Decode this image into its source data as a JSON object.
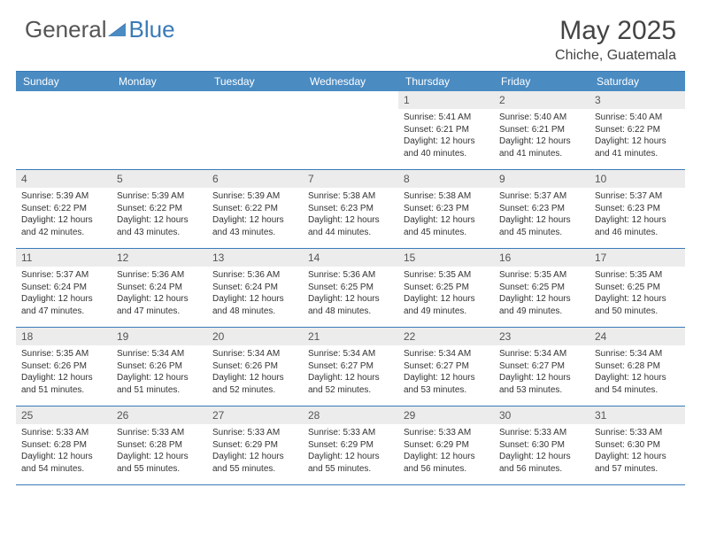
{
  "logo": {
    "text_general": "General",
    "text_blue": "Blue"
  },
  "title": "May 2025",
  "location": "Chiche, Guatemala",
  "colors": {
    "header_bg": "#4a8bc2",
    "border": "#3a7ab8",
    "daynum_bg": "#ececec",
    "text": "#333333"
  },
  "day_names": [
    "Sunday",
    "Monday",
    "Tuesday",
    "Wednesday",
    "Thursday",
    "Friday",
    "Saturday"
  ],
  "weeks": [
    [
      {
        "empty": true
      },
      {
        "empty": true
      },
      {
        "empty": true
      },
      {
        "empty": true
      },
      {
        "day": "1",
        "sunrise": "Sunrise: 5:41 AM",
        "sunset": "Sunset: 6:21 PM",
        "daylight": "Daylight: 12 hours and 40 minutes."
      },
      {
        "day": "2",
        "sunrise": "Sunrise: 5:40 AM",
        "sunset": "Sunset: 6:21 PM",
        "daylight": "Daylight: 12 hours and 41 minutes."
      },
      {
        "day": "3",
        "sunrise": "Sunrise: 5:40 AM",
        "sunset": "Sunset: 6:22 PM",
        "daylight": "Daylight: 12 hours and 41 minutes."
      }
    ],
    [
      {
        "day": "4",
        "sunrise": "Sunrise: 5:39 AM",
        "sunset": "Sunset: 6:22 PM",
        "daylight": "Daylight: 12 hours and 42 minutes."
      },
      {
        "day": "5",
        "sunrise": "Sunrise: 5:39 AM",
        "sunset": "Sunset: 6:22 PM",
        "daylight": "Daylight: 12 hours and 43 minutes."
      },
      {
        "day": "6",
        "sunrise": "Sunrise: 5:39 AM",
        "sunset": "Sunset: 6:22 PM",
        "daylight": "Daylight: 12 hours and 43 minutes."
      },
      {
        "day": "7",
        "sunrise": "Sunrise: 5:38 AM",
        "sunset": "Sunset: 6:23 PM",
        "daylight": "Daylight: 12 hours and 44 minutes."
      },
      {
        "day": "8",
        "sunrise": "Sunrise: 5:38 AM",
        "sunset": "Sunset: 6:23 PM",
        "daylight": "Daylight: 12 hours and 45 minutes."
      },
      {
        "day": "9",
        "sunrise": "Sunrise: 5:37 AM",
        "sunset": "Sunset: 6:23 PM",
        "daylight": "Daylight: 12 hours and 45 minutes."
      },
      {
        "day": "10",
        "sunrise": "Sunrise: 5:37 AM",
        "sunset": "Sunset: 6:23 PM",
        "daylight": "Daylight: 12 hours and 46 minutes."
      }
    ],
    [
      {
        "day": "11",
        "sunrise": "Sunrise: 5:37 AM",
        "sunset": "Sunset: 6:24 PM",
        "daylight": "Daylight: 12 hours and 47 minutes."
      },
      {
        "day": "12",
        "sunrise": "Sunrise: 5:36 AM",
        "sunset": "Sunset: 6:24 PM",
        "daylight": "Daylight: 12 hours and 47 minutes."
      },
      {
        "day": "13",
        "sunrise": "Sunrise: 5:36 AM",
        "sunset": "Sunset: 6:24 PM",
        "daylight": "Daylight: 12 hours and 48 minutes."
      },
      {
        "day": "14",
        "sunrise": "Sunrise: 5:36 AM",
        "sunset": "Sunset: 6:25 PM",
        "daylight": "Daylight: 12 hours and 48 minutes."
      },
      {
        "day": "15",
        "sunrise": "Sunrise: 5:35 AM",
        "sunset": "Sunset: 6:25 PM",
        "daylight": "Daylight: 12 hours and 49 minutes."
      },
      {
        "day": "16",
        "sunrise": "Sunrise: 5:35 AM",
        "sunset": "Sunset: 6:25 PM",
        "daylight": "Daylight: 12 hours and 49 minutes."
      },
      {
        "day": "17",
        "sunrise": "Sunrise: 5:35 AM",
        "sunset": "Sunset: 6:25 PM",
        "daylight": "Daylight: 12 hours and 50 minutes."
      }
    ],
    [
      {
        "day": "18",
        "sunrise": "Sunrise: 5:35 AM",
        "sunset": "Sunset: 6:26 PM",
        "daylight": "Daylight: 12 hours and 51 minutes."
      },
      {
        "day": "19",
        "sunrise": "Sunrise: 5:34 AM",
        "sunset": "Sunset: 6:26 PM",
        "daylight": "Daylight: 12 hours and 51 minutes."
      },
      {
        "day": "20",
        "sunrise": "Sunrise: 5:34 AM",
        "sunset": "Sunset: 6:26 PM",
        "daylight": "Daylight: 12 hours and 52 minutes."
      },
      {
        "day": "21",
        "sunrise": "Sunrise: 5:34 AM",
        "sunset": "Sunset: 6:27 PM",
        "daylight": "Daylight: 12 hours and 52 minutes."
      },
      {
        "day": "22",
        "sunrise": "Sunrise: 5:34 AM",
        "sunset": "Sunset: 6:27 PM",
        "daylight": "Daylight: 12 hours and 53 minutes."
      },
      {
        "day": "23",
        "sunrise": "Sunrise: 5:34 AM",
        "sunset": "Sunset: 6:27 PM",
        "daylight": "Daylight: 12 hours and 53 minutes."
      },
      {
        "day": "24",
        "sunrise": "Sunrise: 5:34 AM",
        "sunset": "Sunset: 6:28 PM",
        "daylight": "Daylight: 12 hours and 54 minutes."
      }
    ],
    [
      {
        "day": "25",
        "sunrise": "Sunrise: 5:33 AM",
        "sunset": "Sunset: 6:28 PM",
        "daylight": "Daylight: 12 hours and 54 minutes."
      },
      {
        "day": "26",
        "sunrise": "Sunrise: 5:33 AM",
        "sunset": "Sunset: 6:28 PM",
        "daylight": "Daylight: 12 hours and 55 minutes."
      },
      {
        "day": "27",
        "sunrise": "Sunrise: 5:33 AM",
        "sunset": "Sunset: 6:29 PM",
        "daylight": "Daylight: 12 hours and 55 minutes."
      },
      {
        "day": "28",
        "sunrise": "Sunrise: 5:33 AM",
        "sunset": "Sunset: 6:29 PM",
        "daylight": "Daylight: 12 hours and 55 minutes."
      },
      {
        "day": "29",
        "sunrise": "Sunrise: 5:33 AM",
        "sunset": "Sunset: 6:29 PM",
        "daylight": "Daylight: 12 hours and 56 minutes."
      },
      {
        "day": "30",
        "sunrise": "Sunrise: 5:33 AM",
        "sunset": "Sunset: 6:30 PM",
        "daylight": "Daylight: 12 hours and 56 minutes."
      },
      {
        "day": "31",
        "sunrise": "Sunrise: 5:33 AM",
        "sunset": "Sunset: 6:30 PM",
        "daylight": "Daylight: 12 hours and 57 minutes."
      }
    ]
  ]
}
